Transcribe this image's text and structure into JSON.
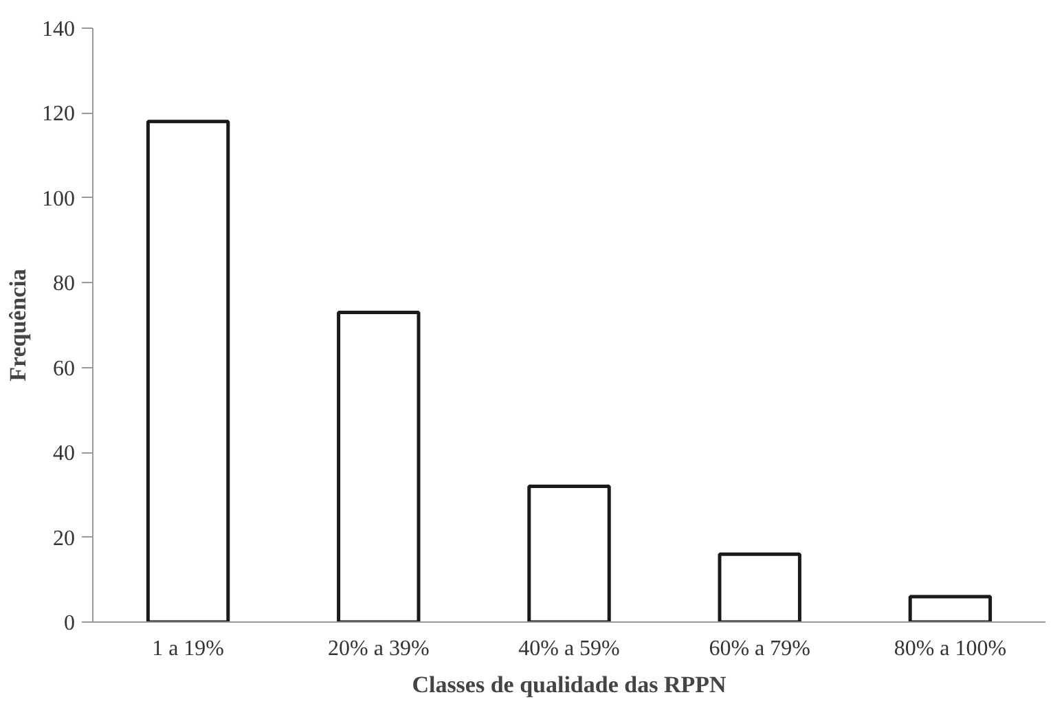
{
  "chart_data": {
    "type": "bar",
    "xlabel": "Classes de qualidade das RPPN",
    "ylabel": "Frequência",
    "categories": [
      "1 a 19%",
      "20% a 39%",
      "40% a 59%",
      "60% a 79%",
      "80% a 100%"
    ],
    "values": [
      118,
      73,
      32,
      16,
      6
    ],
    "color": "#ffffff",
    "ylim": [
      0,
      140
    ],
    "yticks": [
      0,
      20,
      40,
      60,
      80,
      100,
      120,
      140
    ],
    "grid": false
  }
}
